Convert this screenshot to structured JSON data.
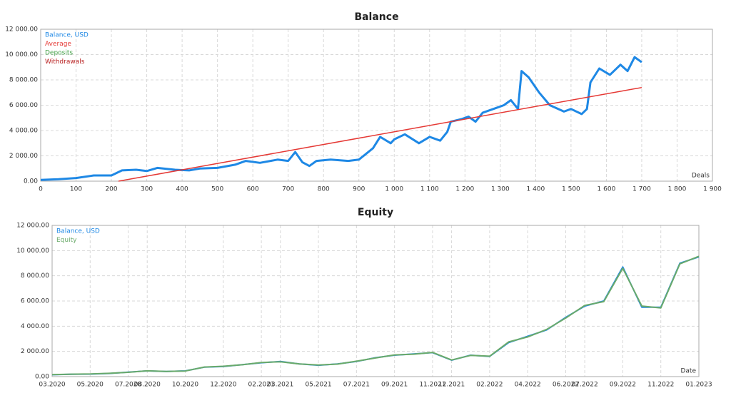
{
  "chart_data": [
    {
      "type": "line",
      "title": "Balance",
      "x_label": "Deals",
      "xlim": [
        0,
        1900
      ],
      "xticks": [
        0,
        100,
        200,
        300,
        400,
        500,
        600,
        700,
        800,
        900,
        {
          "value": 1000,
          "label": "1 000"
        },
        {
          "value": 1100,
          "label": "1 100"
        },
        {
          "value": 1200,
          "label": "1 200"
        },
        {
          "value": 1300,
          "label": "1 300"
        },
        {
          "value": 1400,
          "label": "1 400"
        },
        {
          "value": 1500,
          "label": "1 500"
        },
        {
          "value": 1600,
          "label": "1 600"
        },
        {
          "value": 1700,
          "label": "1 700"
        },
        {
          "value": 1800,
          "label": "1 800"
        },
        {
          "value": 1900,
          "label": "1 900"
        }
      ],
      "ylim": [
        0,
        12000
      ],
      "yticks": [
        {
          "value": 0,
          "label": "0.00"
        },
        {
          "value": 2000,
          "label": "2 000.00"
        },
        {
          "value": 4000,
          "label": "4 000.00"
        },
        {
          "value": 6000,
          "label": "6 000.00"
        },
        {
          "value": 8000,
          "label": "8 000.00"
        },
        {
          "value": 10000,
          "label": "10 000.00"
        },
        {
          "value": 12000,
          "label": "12 000.00"
        }
      ],
      "grid": true,
      "series": [
        {
          "name": "Balance, USD",
          "color": "#1e88e5",
          "width": 3,
          "x": [
            0,
            50,
            100,
            150,
            200,
            230,
            270,
            300,
            330,
            380,
            420,
            450,
            500,
            550,
            580,
            620,
            670,
            700,
            720,
            740,
            760,
            780,
            820,
            870,
            900,
            940,
            960,
            990,
            1000,
            1030,
            1070,
            1100,
            1130,
            1150,
            1160,
            1190,
            1210,
            1230,
            1250,
            1290,
            1310,
            1330,
            1350,
            1360,
            1380,
            1410,
            1440,
            1480,
            1500,
            1530,
            1545,
            1555,
            1580,
            1610,
            1640,
            1660,
            1680,
            1700
          ],
          "values": [
            100,
            150,
            250,
            450,
            450,
            850,
            900,
            800,
            1050,
            900,
            850,
            1000,
            1050,
            1300,
            1600,
            1450,
            1700,
            1600,
            2300,
            1500,
            1200,
            1600,
            1700,
            1600,
            1700,
            2600,
            3500,
            3000,
            3300,
            3700,
            3000,
            3500,
            3200,
            3900,
            4700,
            4900,
            5100,
            4700,
            5400,
            5800,
            6000,
            6400,
            5700,
            8700,
            8200,
            7000,
            6000,
            5500,
            5700,
            5300,
            5700,
            7800,
            8900,
            8400,
            9200,
            8700,
            9800,
            9400
          ]
        },
        {
          "name": "Average",
          "color": "#e53935",
          "width": 1.5,
          "x": [
            220,
            1700
          ],
          "values": [
            0,
            7400
          ]
        },
        {
          "name": "Deposits",
          "color": "#43a047",
          "width": 1.5,
          "x": [],
          "values": []
        },
        {
          "name": "Withdrawals",
          "color": "#b71c1c",
          "width": 1.5,
          "x": [],
          "values": []
        }
      ]
    },
    {
      "type": "line",
      "title": "Equity",
      "x_label": "Date",
      "xlim": [
        "2020-03",
        "2023-01"
      ],
      "xticks": [
        {
          "value": "2020-03",
          "label": "03.2020"
        },
        {
          "value": "2020-05",
          "label": "05.2020"
        },
        {
          "value": "2020-07",
          "label": "07.2020"
        },
        {
          "value": "2020-08",
          "label": "08.2020"
        },
        {
          "value": "2020-10",
          "label": "10.2020"
        },
        {
          "value": "2020-12",
          "label": "12.2020"
        },
        {
          "value": "2021-02",
          "label": "02.2021"
        },
        {
          "value": "2021-03",
          "label": "03.2021"
        },
        {
          "value": "2021-05",
          "label": "05.2021"
        },
        {
          "value": "2021-07",
          "label": "07.2021"
        },
        {
          "value": "2021-09",
          "label": "09.2021"
        },
        {
          "value": "2021-11",
          "label": "11.2021"
        },
        {
          "value": "2021-12",
          "label": "12.2021"
        },
        {
          "value": "2022-02",
          "label": "02.2022"
        },
        {
          "value": "2022-04",
          "label": "04.2022"
        },
        {
          "value": "2022-06",
          "label": "06.2022"
        },
        {
          "value": "2022-07",
          "label": "07.2022"
        },
        {
          "value": "2022-09",
          "label": "09.2022"
        },
        {
          "value": "2022-11",
          "label": "11.2022"
        },
        {
          "value": "2023-01",
          "label": "01.2023"
        }
      ],
      "ylim": [
        0,
        12000
      ],
      "yticks": [
        {
          "value": 0,
          "label": "0.00"
        },
        {
          "value": 2000,
          "label": "2 000.00"
        },
        {
          "value": 4000,
          "label": "4 000.00"
        },
        {
          "value": 6000,
          "label": "6 000.00"
        },
        {
          "value": 8000,
          "label": "8 000.00"
        },
        {
          "value": 10000,
          "label": "10 000.00"
        },
        {
          "value": 12000,
          "label": "12 000.00"
        }
      ],
      "grid": true,
      "x": [
        "2020-03",
        "2020-04",
        "2020-05",
        "2020-06",
        "2020-07",
        "2020-08",
        "2020-09",
        "2020-10",
        "2020-11",
        "2020-12",
        "2021-01",
        "2021-02",
        "2021-03",
        "2021-04",
        "2021-05",
        "2021-06",
        "2021-07",
        "2021-08",
        "2021-09",
        "2021-10",
        "2021-11",
        "2021-12",
        "2022-01",
        "2022-02",
        "2022-03",
        "2022-04",
        "2022-05",
        "2022-06",
        "2022-07",
        "2022-08",
        "2022-09",
        "2022-10",
        "2022-11",
        "2022-12",
        "2023-01"
      ],
      "series": [
        {
          "name": "Balance, USD",
          "color": "#1e88e5",
          "width": 2,
          "values": [
            150,
            180,
            200,
            250,
            350,
            450,
            400,
            450,
            750,
            800,
            950,
            1100,
            1200,
            1000,
            900,
            1000,
            1200,
            1500,
            1700,
            1800,
            1900,
            1300,
            1700,
            1600,
            2700,
            3200,
            3700,
            4700,
            5600,
            6000,
            8700,
            5500,
            5500,
            9000,
            9500
          ]
        },
        {
          "name": "Equity",
          "color": "#6aaa6a",
          "width": 2,
          "values": [
            160,
            190,
            210,
            260,
            340,
            460,
            410,
            440,
            760,
            820,
            940,
            1120,
            1180,
            1010,
            920,
            990,
            1220,
            1480,
            1720,
            1780,
            1920,
            1320,
            1680,
            1620,
            2750,
            3150,
            3750,
            4650,
            5650,
            5950,
            8600,
            5600,
            5450,
            8950,
            9550
          ]
        }
      ]
    }
  ]
}
